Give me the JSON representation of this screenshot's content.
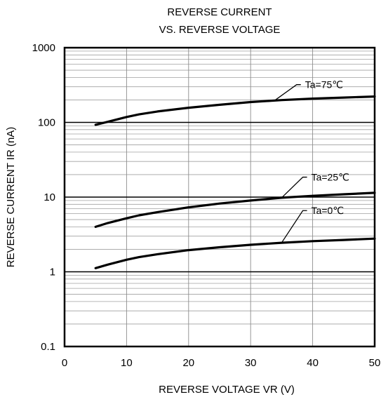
{
  "chart_data": {
    "type": "line",
    "title": [
      "REVERSE CURRENT",
      "VS. REVERSE VOLTAGE"
    ],
    "xlabel": "REVERSE VOLTAGE  VR (V)",
    "ylabel": "REVERSE CURRENT  IR (nA)",
    "xlim": [
      0,
      50
    ],
    "ylim": [
      0.1,
      1000
    ],
    "y_scale": "log",
    "grid": true,
    "x_ticks": [
      {
        "value": 0,
        "label": "0"
      },
      {
        "value": 10,
        "label": "10"
      },
      {
        "value": 20,
        "label": "20"
      },
      {
        "value": 30,
        "label": "30"
      },
      {
        "value": 40,
        "label": "40"
      },
      {
        "value": 50,
        "label": "50"
      }
    ],
    "y_ticks": [
      {
        "value": 0.1,
        "label": "0.1"
      },
      {
        "value": 1,
        "label": "1"
      },
      {
        "value": 10,
        "label": "10"
      },
      {
        "value": 100,
        "label": "100"
      },
      {
        "value": 1000,
        "label": "1000"
      }
    ],
    "series": [
      {
        "name": "Ta=75℃",
        "x": [
          5,
          7,
          10,
          12,
          15,
          20,
          25,
          30,
          35,
          40,
          45,
          50
        ],
        "y": [
          93,
          102,
          118,
          128,
          140,
          157,
          172,
          187,
          199,
          208,
          215,
          222
        ],
        "label_at": [
          39,
          320
        ],
        "leader_from": [
          34,
          200
        ]
      },
      {
        "name": "Ta=25℃",
        "x": [
          5,
          7,
          10,
          12,
          15,
          20,
          25,
          30,
          35,
          40,
          45,
          50
        ],
        "y": [
          4.0,
          4.5,
          5.2,
          5.7,
          6.3,
          7.3,
          8.2,
          9.0,
          9.8,
          10.4,
          10.9,
          11.4
        ],
        "label_at": [
          40,
          18.5
        ],
        "leader_from": [
          35,
          9.8
        ]
      },
      {
        "name": "Ta=0℃",
        "x": [
          5,
          7,
          10,
          12,
          15,
          20,
          25,
          30,
          35,
          40,
          45,
          50
        ],
        "y": [
          1.12,
          1.25,
          1.45,
          1.57,
          1.72,
          1.95,
          2.13,
          2.3,
          2.45,
          2.57,
          2.67,
          2.78
        ],
        "label_at": [
          40,
          6.6
        ],
        "leader_from": [
          35,
          2.45
        ]
      }
    ]
  }
}
